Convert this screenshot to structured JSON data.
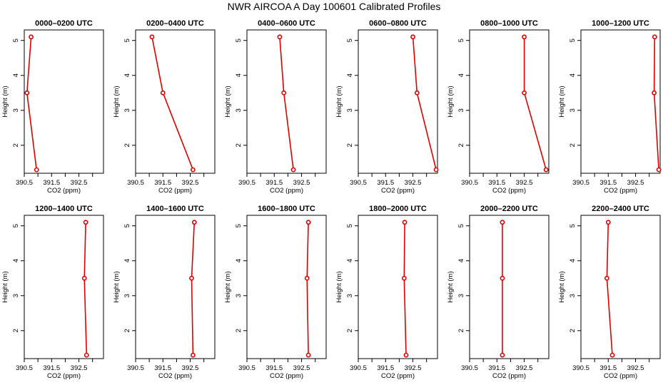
{
  "page": {
    "title": "NWR AIRCOA A  Day 100601  Calibrated Profiles"
  },
  "colors": {
    "series": "#e00000",
    "axis": "#000000",
    "background": "#ffffff"
  },
  "chart_data": [
    {
      "type": "line",
      "title": "0000–0200 UTC",
      "xlabel": "CO2 (ppm)",
      "ylabel": "Height (m)",
      "xlim": [
        390.5,
        393.4
      ],
      "ylim": [
        1.2,
        5.3
      ],
      "xticks": [
        "390.5",
        "391.5",
        "392.5"
      ],
      "xtick_values": [
        390.5,
        391,
        391.5,
        392,
        392.5,
        393
      ],
      "yticks": [
        "2",
        "3",
        "4",
        "5"
      ],
      "ytick_values": [
        2,
        3,
        4,
        5
      ],
      "x": [
        390.75,
        390.6,
        390.95
      ],
      "y": [
        5.1,
        3.5,
        1.3
      ]
    },
    {
      "type": "line",
      "title": "0200–0400 UTC",
      "xlabel": "CO2 (ppm)",
      "ylabel": "Height (m)",
      "xlim": [
        390.5,
        393.4
      ],
      "ylim": [
        1.2,
        5.3
      ],
      "xticks": [
        "390.5",
        "391.5",
        "392.5"
      ],
      "xtick_values": [
        390.5,
        391,
        391.5,
        392,
        392.5,
        393
      ],
      "yticks": [
        "2",
        "3",
        "4",
        "5"
      ],
      "ytick_values": [
        2,
        3,
        4,
        5
      ],
      "x": [
        391.1,
        391.5,
        392.6
      ],
      "y": [
        5.1,
        3.5,
        1.3
      ]
    },
    {
      "type": "line",
      "title": "0400–0600 UTC",
      "xlabel": "CO2 (ppm)",
      "ylabel": "Height (m)",
      "xlim": [
        390.5,
        393.4
      ],
      "ylim": [
        1.2,
        5.3
      ],
      "xticks": [
        "390.5",
        "391.5",
        "392.5"
      ],
      "xtick_values": [
        390.5,
        391,
        391.5,
        392,
        392.5,
        393
      ],
      "yticks": [
        "2",
        "3",
        "4",
        "5"
      ],
      "ytick_values": [
        2,
        3,
        4,
        5
      ],
      "x": [
        391.7,
        391.85,
        392.2
      ],
      "y": [
        5.1,
        3.5,
        1.3
      ]
    },
    {
      "type": "line",
      "title": "0600–0800 UTC",
      "xlabel": "CO2 (ppm)",
      "ylabel": "Height (m)",
      "xlim": [
        390.5,
        393.4
      ],
      "ylim": [
        1.2,
        5.3
      ],
      "xticks": [
        "390.5",
        "391.5",
        "392.5"
      ],
      "xtick_values": [
        390.5,
        391,
        391.5,
        392,
        392.5,
        393
      ],
      "yticks": [
        "2",
        "3",
        "4",
        "5"
      ],
      "ytick_values": [
        2,
        3,
        4,
        5
      ],
      "x": [
        392.5,
        392.65,
        393.35
      ],
      "y": [
        5.1,
        3.5,
        1.3
      ]
    },
    {
      "type": "line",
      "title": "0800–1000 UTC",
      "xlabel": "CO2 (ppm)",
      "ylabel": "Height (m)",
      "xlim": [
        390.5,
        393.4
      ],
      "ylim": [
        1.2,
        5.3
      ],
      "xticks": [
        "390.5",
        "391.5",
        "392.5"
      ],
      "xtick_values": [
        390.5,
        391,
        391.5,
        392,
        392.5,
        393
      ],
      "yticks": [
        "2",
        "3",
        "4",
        "5"
      ],
      "ytick_values": [
        2,
        3,
        4,
        5
      ],
      "x": [
        392.5,
        392.5,
        393.3
      ],
      "y": [
        5.1,
        3.5,
        1.3
      ]
    },
    {
      "type": "line",
      "title": "1000–1200 UTC",
      "xlabel": "CO2 (ppm)",
      "ylabel": "Height (m)",
      "xlim": [
        390.5,
        393.4
      ],
      "ylim": [
        1.2,
        5.3
      ],
      "xticks": [
        "390.5",
        "391.5",
        "392.5"
      ],
      "xtick_values": [
        390.5,
        391,
        391.5,
        392,
        392.5,
        393
      ],
      "yticks": [
        "2",
        "3",
        "4",
        "5"
      ],
      "ytick_values": [
        2,
        3,
        4,
        5
      ],
      "x": [
        393.2,
        393.18,
        393.35
      ],
      "y": [
        5.1,
        3.5,
        1.3
      ]
    },
    {
      "type": "line",
      "title": "1200–1400 UTC",
      "xlabel": "CO2 (ppm)",
      "ylabel": "Height (m)",
      "xlim": [
        390.5,
        393.4
      ],
      "ylim": [
        1.2,
        5.3
      ],
      "xticks": [
        "390.5",
        "391.5",
        "392.5"
      ],
      "xtick_values": [
        390.5,
        391,
        391.5,
        392,
        392.5,
        393
      ],
      "yticks": [
        "2",
        "3",
        "4",
        "5"
      ],
      "ytick_values": [
        2,
        3,
        4,
        5
      ],
      "x": [
        392.75,
        392.7,
        392.78
      ],
      "y": [
        5.1,
        3.5,
        1.3
      ]
    },
    {
      "type": "line",
      "title": "1400–1600 UTC",
      "xlabel": "CO2 (ppm)",
      "ylabel": "Height (m)",
      "xlim": [
        390.5,
        393.4
      ],
      "ylim": [
        1.2,
        5.3
      ],
      "xticks": [
        "390.5",
        "391.5",
        "392.5"
      ],
      "xtick_values": [
        390.5,
        391,
        391.5,
        392,
        392.5,
        393
      ],
      "yticks": [
        "2",
        "3",
        "4",
        "5"
      ],
      "ytick_values": [
        2,
        3,
        4,
        5
      ],
      "x": [
        392.65,
        392.55,
        392.6
      ],
      "y": [
        5.1,
        3.5,
        1.3
      ]
    },
    {
      "type": "line",
      "title": "1600–1800 UTC",
      "xlabel": "CO2 (ppm)",
      "ylabel": "Height (m)",
      "xlim": [
        390.5,
        393.4
      ],
      "ylim": [
        1.2,
        5.3
      ],
      "xticks": [
        "390.5",
        "391.5",
        "392.5"
      ],
      "xtick_values": [
        390.5,
        391,
        391.5,
        392,
        392.5,
        393
      ],
      "yticks": [
        "2",
        "3",
        "4",
        "5"
      ],
      "ytick_values": [
        2,
        3,
        4,
        5
      ],
      "x": [
        392.75,
        392.7,
        392.75
      ],
      "y": [
        5.1,
        3.5,
        1.3
      ]
    },
    {
      "type": "line",
      "title": "1800–2000 UTC",
      "xlabel": "CO2 (ppm)",
      "ylabel": "Height (m)",
      "xlim": [
        390.5,
        393.4
      ],
      "ylim": [
        1.2,
        5.3
      ],
      "xticks": [
        "390.5",
        "391.5",
        "392.5"
      ],
      "xtick_values": [
        390.5,
        391,
        391.5,
        392,
        392.5,
        393
      ],
      "yticks": [
        "2",
        "3",
        "4",
        "5"
      ],
      "ytick_values": [
        2,
        3,
        4,
        5
      ],
      "x": [
        392.2,
        392.18,
        392.25
      ],
      "y": [
        5.1,
        3.5,
        1.3
      ]
    },
    {
      "type": "line",
      "title": "2000–2200 UTC",
      "xlabel": "CO2 (ppm)",
      "ylabel": "Height (m)",
      "xlim": [
        390.5,
        393.4
      ],
      "ylim": [
        1.2,
        5.3
      ],
      "xticks": [
        "390.5",
        "391.5",
        "392.5"
      ],
      "xtick_values": [
        390.5,
        391,
        391.5,
        392,
        392.5,
        393
      ],
      "yticks": [
        "2",
        "3",
        "4",
        "5"
      ],
      "ytick_values": [
        2,
        3,
        4,
        5
      ],
      "x": [
        391.7,
        391.7,
        391.7
      ],
      "y": [
        5.1,
        3.5,
        1.3
      ]
    },
    {
      "type": "line",
      "title": "2200–2400 UTC",
      "xlabel": "CO2 (ppm)",
      "ylabel": "Height (m)",
      "xlim": [
        390.5,
        393.4
      ],
      "ylim": [
        1.2,
        5.3
      ],
      "xticks": [
        "390.5",
        "391.5",
        "392.5"
      ],
      "xtick_values": [
        390.5,
        391,
        391.5,
        392,
        392.5,
        393
      ],
      "yticks": [
        "2",
        "3",
        "4",
        "5"
      ],
      "ytick_values": [
        2,
        3,
        4,
        5
      ],
      "x": [
        391.5,
        391.45,
        391.65
      ],
      "y": [
        5.1,
        3.5,
        1.3
      ]
    }
  ]
}
